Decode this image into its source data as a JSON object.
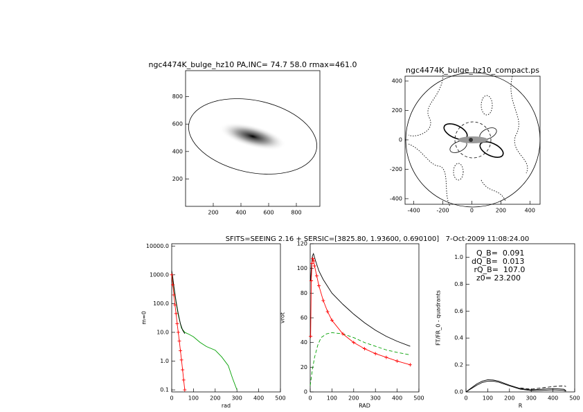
{
  "suptitle": "SFITS=SEEING 2.16 + SERSIC=[3825.80, 1.93600, 0.690100]   7-Oct-2009 11:08:24.00",
  "chart_data": [
    {
      "type": "image",
      "title": "ngc4474K_bulge_hz10 PA,INC= 74.7 58.0 rmax=461.0",
      "xlim": [
        0,
        970
      ],
      "ylim": [
        0,
        990
      ],
      "xticks": [
        200,
        400,
        600,
        800
      ],
      "yticks": [
        200,
        400,
        600,
        800
      ]
    },
    {
      "type": "contour",
      "title": "ngc4474K_bulge_hz10_compact.ps",
      "xlim": [
        -460,
        470
      ],
      "ylim": [
        -438,
        433
      ],
      "xticks": [
        -400,
        -200,
        0,
        200,
        400
      ],
      "yticks": [
        -400,
        -200,
        0,
        200,
        400
      ]
    },
    {
      "type": "line",
      "xlabel": "rad",
      "ylabel": "m=0",
      "ylog": true,
      "xlim": [
        0,
        500
      ],
      "ylim": [
        0.085,
        12000
      ],
      "xticks": [
        0,
        100,
        200,
        300,
        400,
        500
      ],
      "yticks": [
        0.1,
        {
          "value": 1,
          "label": "1.0"
        },
        {
          "value": 10,
          "label": "10.0"
        },
        {
          "value": 100,
          "label": "100.0"
        },
        {
          "value": 1000,
          "label": "1000.0"
        },
        {
          "value": 10000,
          "label": "10000.0"
        }
      ],
      "series": [
        {
          "color": "#00a000",
          "x": [
            0,
            5,
            10,
            20,
            30,
            45,
            60,
            80,
            100,
            130,
            160,
            200,
            230,
            260,
            280,
            300
          ],
          "values": [
            1200,
            700,
            350,
            110,
            40,
            14,
            10,
            8.5,
            7,
            4.5,
            3.2,
            2.4,
            1.4,
            0.7,
            0.25,
            0.1
          ]
        },
        {
          "color": "#000000",
          "x": [
            0,
            5,
            10,
            20,
            30,
            40,
            50,
            60
          ],
          "values": [
            1400,
            800,
            400,
            120,
            45,
            20,
            12,
            9
          ]
        },
        {
          "color": "#ff0000",
          "markers": true,
          "x": [
            0,
            5,
            10,
            15,
            20,
            25,
            30,
            35,
            40,
            45,
            50,
            55,
            60
          ],
          "values": [
            1000,
            450,
            200,
            90,
            45,
            20,
            10,
            5,
            2.3,
            1.1,
            0.5,
            0.22,
            0.1
          ]
        }
      ]
    },
    {
      "type": "line",
      "xlabel": "RAD",
      "ylabel": "vrot",
      "xlim": [
        0,
        500
      ],
      "ylim": [
        0,
        120
      ],
      "xticks": [
        0,
        100,
        200,
        300,
        400,
        500
      ],
      "yticks": [
        0,
        20,
        40,
        60,
        80,
        100,
        120
      ],
      "series": [
        {
          "color": "#000000",
          "x": [
            2,
            5,
            10,
            15,
            25,
            40,
            60,
            100,
            150,
            200,
            250,
            300,
            350,
            400,
            460
          ],
          "values": [
            90,
            100,
            110,
            112,
            106,
            98,
            91,
            80,
            71,
            63,
            56,
            50,
            45,
            41,
            37
          ]
        },
        {
          "color": "#00a000",
          "dash": true,
          "x": [
            0,
            10,
            20,
            35,
            50,
            75,
            100,
            150,
            200,
            250,
            300,
            350,
            400,
            460
          ],
          "values": [
            5,
            18,
            28,
            38,
            44,
            47,
            48,
            47,
            44,
            40,
            37,
            34,
            32,
            30
          ]
        },
        {
          "color": "#ff0000",
          "markers": true,
          "x": [
            2,
            5,
            8,
            12,
            16,
            20,
            30,
            40,
            60,
            80,
            100,
            150,
            200,
            250,
            300,
            350,
            400,
            460
          ],
          "values": [
            45,
            90,
            104,
            108,
            106,
            102,
            94,
            86,
            74,
            65,
            58,
            47,
            40,
            35,
            31,
            28,
            25,
            22
          ]
        }
      ]
    },
    {
      "type": "line",
      "xlabel": "R",
      "ylabel": "FT/FR_0 - quadrants",
      "annotations": [
        "  Q_B=  0.091",
        "dQ_B=  0.013",
        " rQ_B=  107.0",
        "  z0= 23.200"
      ],
      "xlim": [
        0,
        500
      ],
      "ylim": [
        0,
        1.1
      ],
      "xticks": [
        0,
        100,
        200,
        300,
        400,
        500
      ],
      "yticks": [
        {
          "value": 0,
          "label": "0.0"
        },
        0.2,
        0.4,
        0.6,
        0.8,
        {
          "value": 1,
          "label": "1.0"
        }
      ],
      "series": [
        {
          "color": "#000000",
          "x": [
            0,
            25,
            50,
            75,
            100,
            125,
            150,
            200,
            250,
            300,
            350,
            400,
            450,
            460
          ],
          "values": [
            0,
            0.03,
            0.06,
            0.08,
            0.09,
            0.088,
            0.08,
            0.05,
            0.025,
            0.015,
            0.02,
            0.025,
            0.02,
            0.01
          ]
        },
        {
          "color": "#000000",
          "x": [
            0,
            25,
            50,
            75,
            100,
            125,
            150,
            200,
            250,
            300,
            350,
            400,
            450,
            460
          ],
          "values": [
            0,
            0.025,
            0.05,
            0.07,
            0.08,
            0.08,
            0.072,
            0.045,
            0.02,
            0.01,
            0.012,
            0.015,
            0.012,
            0.005
          ]
        },
        {
          "color": "#000000",
          "dash": true,
          "x": [
            250,
            300,
            350,
            400,
            450,
            460
          ],
          "values": [
            0.03,
            0.02,
            0.03,
            0.04,
            0.045,
            0.04
          ]
        }
      ]
    }
  ]
}
